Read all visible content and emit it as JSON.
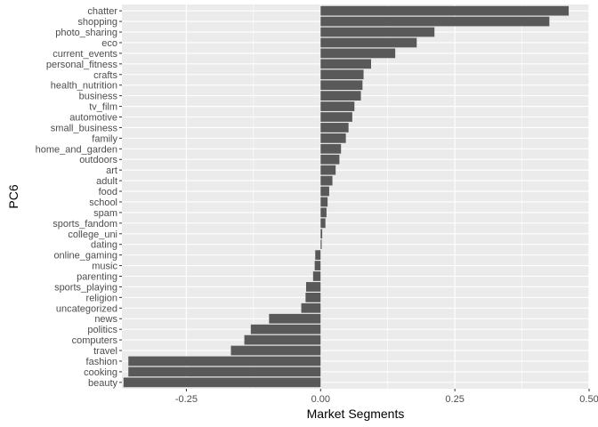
{
  "chart_data": {
    "type": "bar",
    "orientation": "horizontal",
    "xlabel": "Market Segments",
    "ylabel": "PC6",
    "xlim": [
      -0.37,
      0.5
    ],
    "x_ticks": [
      -0.25,
      0.0,
      0.25,
      0.5
    ],
    "x_tick_labels": [
      "-0.25",
      "0.00",
      "0.25",
      "0.50"
    ],
    "grid": true,
    "bar_color": "#595959",
    "panel_color": "#ebebeb",
    "categories": [
      "chatter",
      "shopping",
      "photo_sharing",
      "eco",
      "current_events",
      "personal_fitness",
      "crafts",
      "health_nutrition",
      "business",
      "tv_film",
      "automotive",
      "small_business",
      "family",
      "home_and_garden",
      "outdoors",
      "art",
      "adult",
      "food",
      "school",
      "spam",
      "sports_fandom",
      "college_uni",
      "dating",
      "online_gaming",
      "music",
      "parenting",
      "sports_playing",
      "religion",
      "uncategorized",
      "news",
      "politics",
      "computers",
      "travel",
      "fashion",
      "cooking",
      "beauty"
    ],
    "values": [
      0.462,
      0.426,
      0.212,
      0.179,
      0.139,
      0.094,
      0.08,
      0.078,
      0.075,
      0.063,
      0.059,
      0.052,
      0.047,
      0.038,
      0.035,
      0.028,
      0.022,
      0.016,
      0.013,
      0.011,
      0.009,
      0.003,
      0.002,
      -0.01,
      -0.011,
      -0.014,
      -0.027,
      -0.028,
      -0.036,
      -0.096,
      -0.13,
      -0.142,
      -0.167,
      -0.358,
      -0.358,
      -0.367
    ]
  }
}
